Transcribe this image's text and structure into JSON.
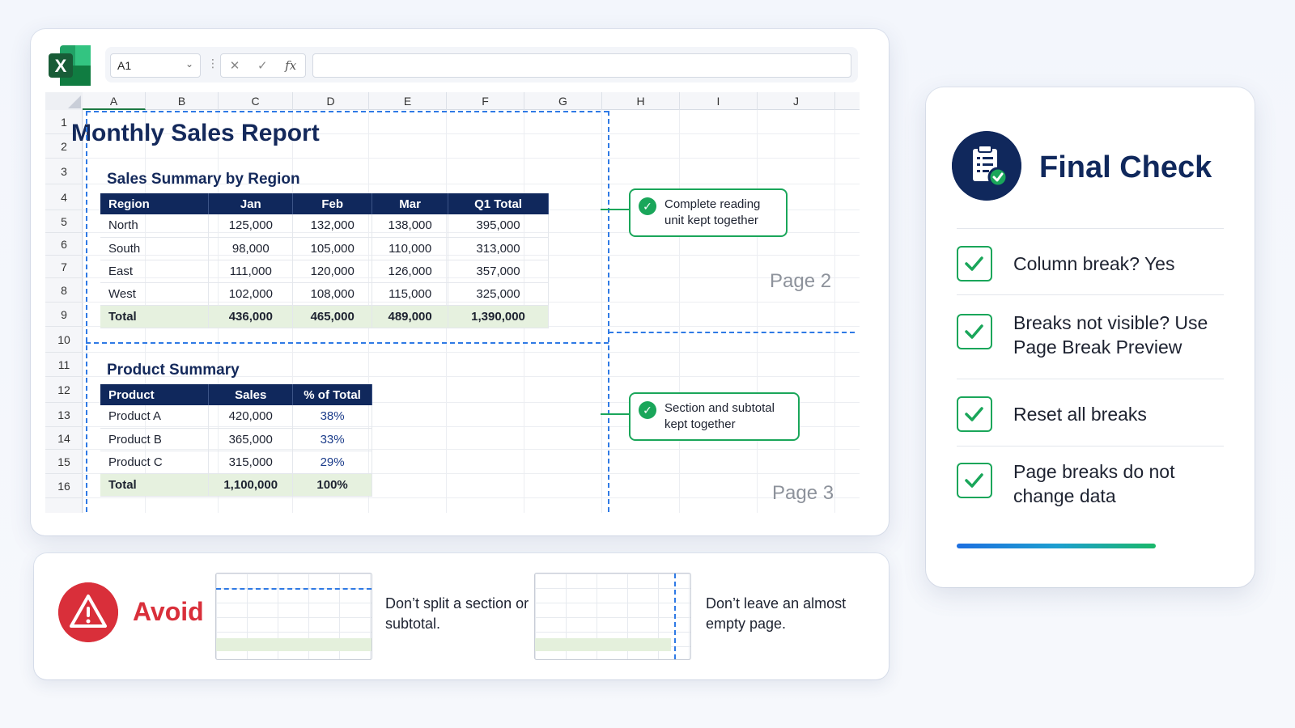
{
  "app": {
    "name_box": "A1",
    "formula_value": ""
  },
  "grid": {
    "columns": [
      "A",
      "B",
      "C",
      "D",
      "E",
      "F",
      "G",
      "H",
      "I",
      "J"
    ],
    "rows": [
      "1",
      "2",
      "3",
      "4",
      "5",
      "6",
      "7",
      "8",
      "9",
      "10",
      "11",
      "12",
      "13",
      "14",
      "15",
      "16"
    ]
  },
  "report": {
    "title": "Monthly Sales Report",
    "region_section_title": "Sales Summary by Region",
    "region_headers": [
      "Region",
      "Jan",
      "Feb",
      "Mar",
      "Q1 Total"
    ],
    "region_rows": [
      [
        "North",
        "125,000",
        "132,000",
        "138,000",
        "395,000"
      ],
      [
        "South",
        "98,000",
        "105,000",
        "110,000",
        "313,000"
      ],
      [
        "East",
        "111,000",
        "120,000",
        "126,000",
        "357,000"
      ],
      [
        "West",
        "102,000",
        "108,000",
        "115,000",
        "325,000"
      ]
    ],
    "region_total": [
      "Total",
      "436,000",
      "465,000",
      "489,000",
      "1,390,000"
    ],
    "product_section_title": "Product Summary",
    "product_headers": [
      "Product",
      "Sales",
      "% of Total"
    ],
    "product_rows": [
      [
        "Product A",
        "420,000",
        "38%"
      ],
      [
        "Product B",
        "365,000",
        "33%"
      ],
      [
        "Product C",
        "315,000",
        "29%"
      ]
    ],
    "product_total": [
      "Total",
      "1,100,000",
      "100%"
    ]
  },
  "callouts": {
    "reading_unit": "Complete reading unit kept together",
    "section_subtotal": "Section and subtotal kept together",
    "page2": "Page 2",
    "page3": "Page 3"
  },
  "avoid": {
    "label": "Avoid",
    "item1": "Don’t split a section or subtotal.",
    "item2": "Don’t leave an almost empty page."
  },
  "final_check": {
    "title": "Final Check",
    "items": [
      "Column break? Yes",
      "Breaks not visible? Use Page Break Preview",
      "Reset all breaks",
      "Page breaks do not change data"
    ]
  },
  "colors": {
    "navy": "#10285c",
    "check_green": "#1aa65a",
    "break_blue": "#2f7ae5",
    "avoid_red": "#d92f3a",
    "total_fill": "#e6f1df"
  },
  "icons": {
    "app": "excel-icon",
    "avoid": "warning-icon",
    "final_check": "clipboard-check-icon",
    "checkbox": "check-icon"
  }
}
